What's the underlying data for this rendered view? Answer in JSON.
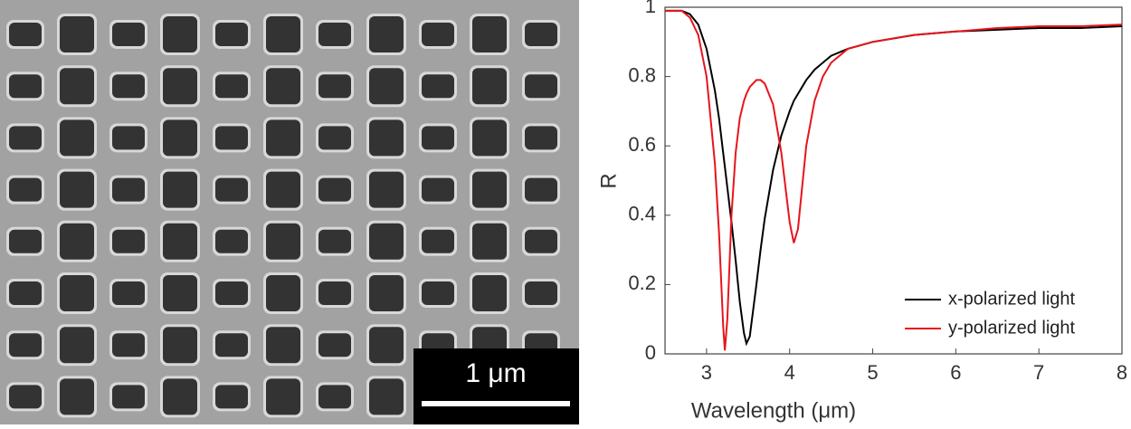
{
  "scale_bar_label": "1 μm",
  "chart_data": {
    "type": "line",
    "xlabel": "Wavelength (μm)",
    "ylabel": "R",
    "xlim": [
      2.5,
      8
    ],
    "ylim": [
      0,
      1
    ],
    "xticks": [
      3,
      4,
      5,
      6,
      7,
      8
    ],
    "yticks": [
      0,
      0.2,
      0.4,
      0.6,
      0.8,
      1
    ],
    "legend": "lower right",
    "x": [
      2.5,
      2.7,
      2.8,
      2.9,
      3.0,
      3.1,
      3.15,
      3.2,
      3.22,
      3.25,
      3.3,
      3.35,
      3.4,
      3.45,
      3.48,
      3.52,
      3.6,
      3.65,
      3.7,
      3.8,
      3.9,
      4.0,
      4.05,
      4.1,
      4.2,
      4.3,
      4.4,
      4.5,
      4.7,
      5,
      5.5,
      6,
      6.5,
      7,
      7.5,
      8
    ],
    "series": [
      {
        "name": "x-polarized light",
        "color": "#000000",
        "values": [
          0.99,
          0.99,
          0.98,
          0.95,
          0.88,
          0.76,
          0.68,
          0.58,
          0.54,
          0.48,
          0.38,
          0.27,
          0.15,
          0.06,
          0.03,
          0.05,
          0.2,
          0.3,
          0.39,
          0.53,
          0.63,
          0.7,
          0.73,
          0.75,
          0.79,
          0.82,
          0.84,
          0.86,
          0.88,
          0.9,
          0.92,
          0.93,
          0.935,
          0.94,
          0.94,
          0.945
        ]
      },
      {
        "name": "y-polarized light",
        "color": "#e8141c",
        "values": [
          0.99,
          0.99,
          0.97,
          0.92,
          0.8,
          0.55,
          0.35,
          0.08,
          0.01,
          0.1,
          0.4,
          0.58,
          0.68,
          0.73,
          0.75,
          0.77,
          0.79,
          0.79,
          0.78,
          0.72,
          0.58,
          0.38,
          0.32,
          0.36,
          0.6,
          0.73,
          0.8,
          0.84,
          0.88,
          0.9,
          0.92,
          0.93,
          0.94,
          0.945,
          0.945,
          0.95
        ]
      }
    ]
  }
}
